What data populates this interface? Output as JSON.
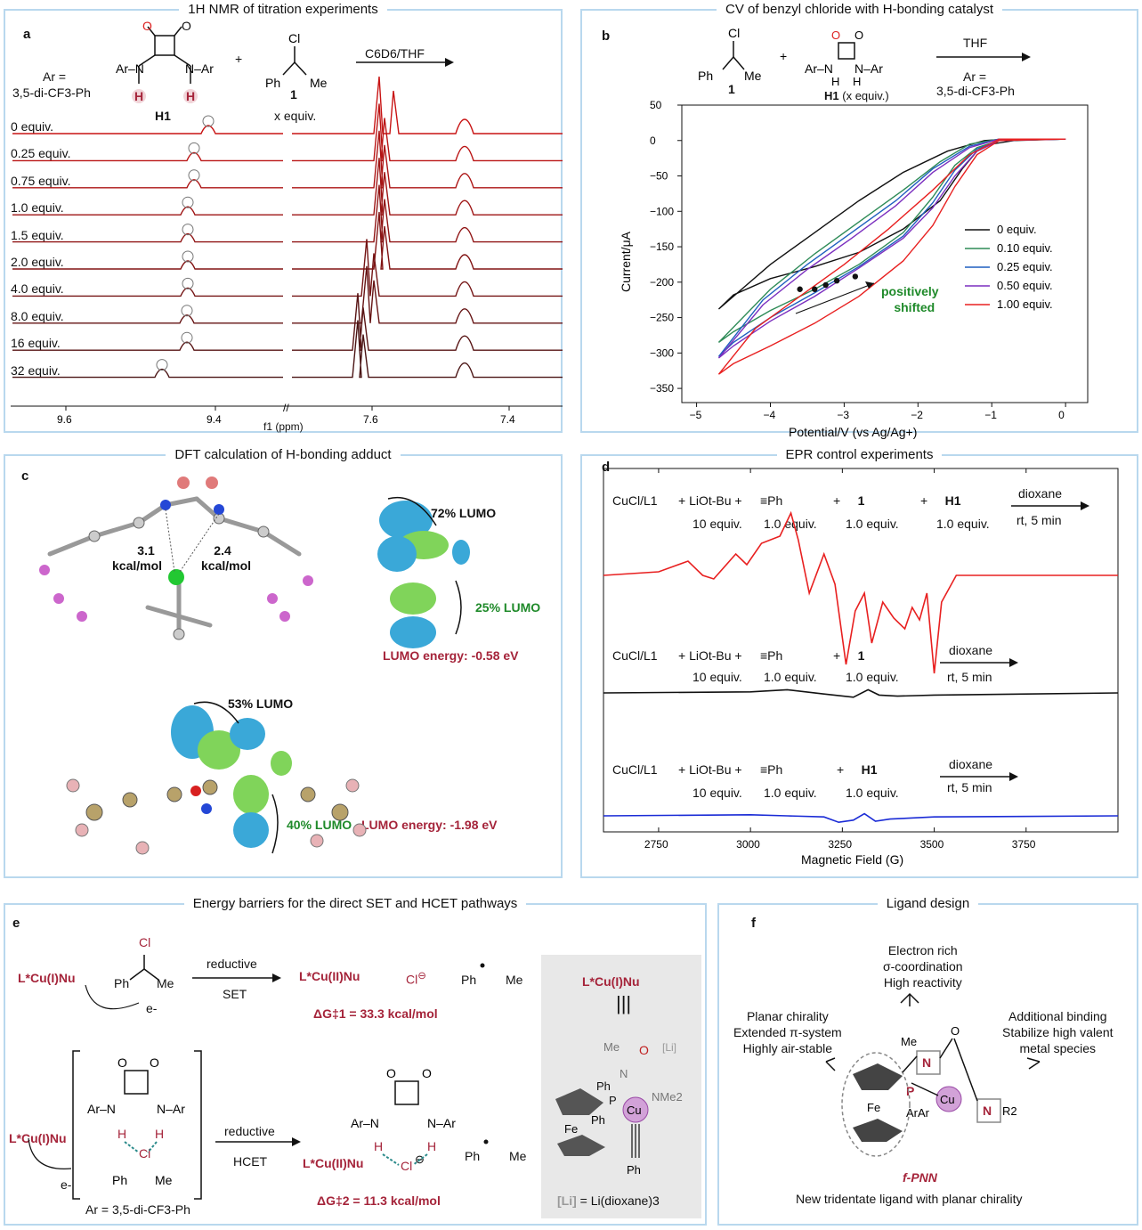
{
  "panels": {
    "a": {
      "letter": "a",
      "title": "1H NMR of titration experiments",
      "ar_def_1": "Ar =",
      "ar_def_2": "3,5-di-CF3-Ph",
      "h1_label": "H1",
      "cmpd1_label": "1",
      "x_equiv": "x equiv.",
      "solvent": "C6D6/THF",
      "axis_label": "f1 (ppm)",
      "ticks": [
        "9.6",
        "9.4",
        "7.6",
        "7.4"
      ],
      "spectra_labels": [
        "0 equiv.",
        "0.25 equiv.",
        "0.75 equiv.",
        "1.0  equiv.",
        "1.5  equiv.",
        "2.0  equiv.",
        "4.0  equiv.",
        "8.0  equiv.",
        "16   equiv.",
        "32   equiv."
      ]
    },
    "b": {
      "letter": "b",
      "title": "CV of benzyl chloride with H-bonding catalyst",
      "cmpd1_label": "1",
      "h1_label": "H1",
      "h1_equiv": "(x equiv.)",
      "solvent": "THF",
      "ar_def_1": "Ar =",
      "ar_def_2": "3,5-di-CF3-Ph",
      "annotation_1": "positively",
      "annotation_2": "shifted"
    },
    "c": {
      "letter": "c",
      "title": "DFT calculation of H-bonding adduct",
      "e1": "3.1",
      "e1_unit": "kcal/mol",
      "e2": "2.4",
      "e2_unit": "kcal/mol",
      "lumo72": "72% LUMO",
      "lumo25": "25% LUMO",
      "lumo_e1": "LUMO energy: -0.58 eV",
      "lumo53": "53% LUMO",
      "lumo40": "40% LUMO",
      "lumo_e2": "LUMO energy: -1.98 eV"
    },
    "d": {
      "letter": "d",
      "title": "EPR control experiments",
      "rows": [
        {
          "cu": "CuCl/L1",
          "base": "LiOt-Bu",
          "alkyne": "Ph",
          "c1": "1",
          "h1": "H1",
          "eq_base": "10 equiv.",
          "eq_alk": "1.0 equiv.",
          "eq_c1": "1.0 equiv.",
          "eq_h1": "1.0 equiv.",
          "solv": "dioxane",
          "cond": "rt, 5 min"
        },
        {
          "cu": "CuCl/L1",
          "base": "LiOt-Bu",
          "alkyne": "Ph",
          "c1": "1",
          "eq_base": "10 equiv.",
          "eq_alk": "1.0 equiv.",
          "eq_c1": "1.0 equiv.",
          "solv": "dioxane",
          "cond": "rt, 5 min"
        },
        {
          "cu": "CuCl/L1",
          "base": "LiOt-Bu",
          "alkyne": "Ph",
          "h1": "H1",
          "eq_base": "10 equiv.",
          "eq_alk": "1.0 equiv.",
          "eq_h1": "1.0 equiv.",
          "solv": "dioxane",
          "cond": "rt, 5 min"
        }
      ]
    },
    "e": {
      "letter": "e",
      "title": "Energy barriers for the direct SET and HCET pathways",
      "cu1": "L*Cu(I)Nu",
      "reductive": "reductive",
      "set": "SET",
      "hcet": "HCET",
      "cu2": "L*Cu(II)Nu",
      "cl": "Cl",
      "dg1": "ΔG‡1 = 33.3 kcal/mol",
      "dg2": "ΔG‡2 = 11.3 kcal/mol",
      "eminus": "e-",
      "ar_def": "Ar = 3,5-di-CF3-Ph",
      "li_def": "= Li(dioxane)3",
      "li": "[Li]",
      "ph": "Ph",
      "me": "Me",
      "ar": "Ar",
      "h": "H",
      "n": "N",
      "o": "O",
      "fe": "Fe",
      "p": "P",
      "cu": "Cu",
      "nme2": "NMe2"
    },
    "f": {
      "letter": "f",
      "title": "Ligand design",
      "top_1": "Electron rich",
      "top_2": "σ-coordination",
      "top_3": "High reactivity",
      "left_1": "Planar chirality",
      "left_2": "Extended π-system",
      "left_3": "Highly air-stable",
      "right_1": "Additional binding",
      "right_2": "Stabilize high valent",
      "right_3": "metal species",
      "name": "f-PNN",
      "caption": "New tridentate ligand with planar chirality",
      "me": "Me",
      "n": "N",
      "nr2": "NR2",
      "p": "P",
      "cu": "Cu",
      "arar": "ArAr",
      "fe": "Fe",
      "o": "O"
    }
  },
  "chart_data": [
    {
      "type": "line",
      "panel": "b",
      "xlabel": "Potential/V (vs Ag/Ag+)",
      "ylabel": "Current/μA",
      "xlim": [
        -5.2,
        0.3
      ],
      "ylim": [
        -370,
        50
      ],
      "xticks": [
        -5,
        -4,
        -3,
        -2,
        -1,
        0
      ],
      "yticks": [
        50,
        0,
        -50,
        -100,
        -150,
        -200,
        -250,
        -300,
        -350
      ],
      "legend_position": "right",
      "series": [
        {
          "name": "0 equiv.",
          "color": "#111111",
          "x": [
            0,
            -0.8,
            -1.1,
            -1.6,
            -2.2,
            -2.8,
            -3.4,
            -4.0,
            -4.7,
            -4.5,
            -4.0,
            -3.4,
            -2.8,
            -2.2,
            -1.7,
            -1.4,
            -1.2,
            -1.0,
            -0.7,
            0
          ],
          "y": [
            2,
            2,
            0,
            -15,
            -45,
            -85,
            -130,
            -175,
            -238,
            -218,
            -195,
            -178,
            -158,
            -125,
            -85,
            -40,
            -15,
            -5,
            0,
            2
          ]
        },
        {
          "name": "0.10 equiv.",
          "color": "#2e8b57",
          "x": [
            0,
            -0.9,
            -1.3,
            -1.7,
            -2.2,
            -2.8,
            -3.4,
            -4.0,
            -4.7,
            -4.5,
            -4.0,
            -3.4,
            -2.8,
            -2.2,
            -1.8,
            -1.5,
            -1.2,
            -0.9,
            0
          ],
          "y": [
            2,
            2,
            -5,
            -30,
            -70,
            -115,
            -160,
            -210,
            -285,
            -270,
            -240,
            -210,
            -175,
            -130,
            -80,
            -35,
            -10,
            0,
            2
          ]
        },
        {
          "name": "0.25 equiv.",
          "color": "#1f5fbf",
          "x": [
            0,
            -0.9,
            -1.3,
            -1.8,
            -2.3,
            -2.9,
            -3.5,
            -4.1,
            -4.7,
            -4.5,
            -4.0,
            -3.4,
            -2.8,
            -2.2,
            -1.8,
            -1.5,
            -1.2,
            -0.9,
            0
          ],
          "y": [
            2,
            2,
            -8,
            -40,
            -85,
            -130,
            -175,
            -225,
            -305,
            -285,
            -250,
            -215,
            -178,
            -135,
            -88,
            -42,
            -12,
            0,
            2
          ]
        },
        {
          "name": "0.50 equiv.",
          "color": "#7b2fbf",
          "x": [
            0,
            -0.9,
            -1.3,
            -1.8,
            -2.3,
            -2.9,
            -3.5,
            -4.1,
            -4.7,
            -4.5,
            -4.0,
            -3.4,
            -2.8,
            -2.2,
            -1.8,
            -1.5,
            -1.2,
            -0.9,
            0
          ],
          "y": [
            2,
            2,
            -10,
            -45,
            -92,
            -138,
            -182,
            -232,
            -307,
            -290,
            -255,
            -220,
            -180,
            -138,
            -95,
            -50,
            -15,
            0,
            2
          ]
        },
        {
          "name": "1.00 equiv.",
          "color": "#e82020",
          "x": [
            0,
            -0.9,
            -1.3,
            -1.8,
            -2.4,
            -3.0,
            -3.6,
            -4.2,
            -4.7,
            -4.5,
            -4.0,
            -3.4,
            -2.8,
            -2.2,
            -1.8,
            -1.5,
            -1.2,
            -0.9,
            0
          ],
          "y": [
            2,
            2,
            -20,
            -70,
            -125,
            -175,
            -220,
            -265,
            -330,
            -315,
            -290,
            -258,
            -220,
            -170,
            -120,
            -65,
            -20,
            0,
            2
          ]
        }
      ],
      "markers": {
        "x": [
          -3.6,
          -3.4,
          -3.25,
          -3.1,
          -2.85
        ],
        "y": [
          -210,
          -210,
          -204,
          -198,
          -192
        ]
      }
    },
    {
      "type": "line",
      "panel": "d",
      "xlabel": "Magnetic Field (G)",
      "xlim": [
        2600,
        4000
      ],
      "xticks": [
        2750,
        3000,
        3250,
        3500,
        3750
      ],
      "series": [
        {
          "name": "red",
          "color": "#e82020",
          "x": [
            2600,
            2750,
            2830,
            2870,
            2900,
            2960,
            2990,
            3030,
            3080,
            3110,
            3130,
            3160,
            3200,
            3230,
            3260,
            3285,
            3310,
            3330,
            3360,
            3390,
            3420,
            3440,
            3460,
            3480,
            3500,
            3520,
            3560,
            4000
          ],
          "y": [
            0,
            2,
            8,
            0,
            -2,
            12,
            6,
            18,
            22,
            35,
            20,
            -10,
            12,
            -5,
            -50,
            -20,
            -10,
            -38,
            -15,
            -24,
            -30,
            -18,
            -25,
            -10,
            -55,
            -15,
            0,
            0
          ]
        },
        {
          "name": "black",
          "color": "#111111",
          "x": [
            2600,
            3000,
            3100,
            3200,
            3280,
            3320,
            3350,
            3400,
            3500,
            4000
          ],
          "y": [
            0,
            1,
            3,
            -1,
            -4,
            3,
            -2,
            -3,
            -2,
            0
          ]
        },
        {
          "name": "blue",
          "color": "#1a2bd6",
          "x": [
            2600,
            3000,
            3100,
            3200,
            3240,
            3280,
            3310,
            3340,
            3380,
            3500,
            4000
          ],
          "y": [
            0,
            1,
            0,
            -1,
            -6,
            -4,
            2,
            -5,
            -3,
            -1,
            0
          ]
        }
      ]
    }
  ]
}
